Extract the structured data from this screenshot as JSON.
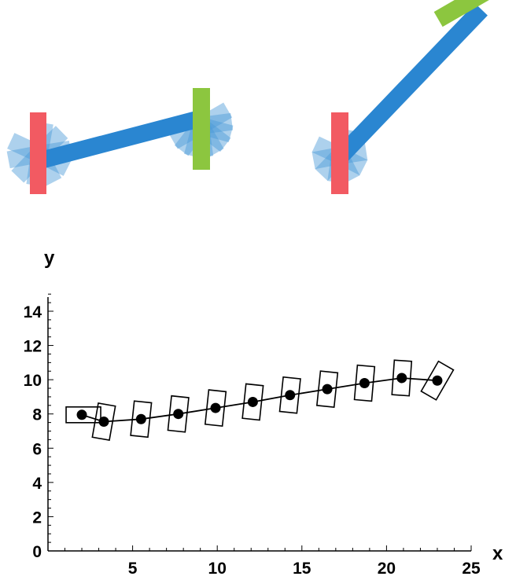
{
  "colors": {
    "beam": "#2a86d1",
    "fan": "#4a9ad6",
    "left_plate": "#f25a62",
    "right_plate": "#8cc63f",
    "ink": "#000000"
  },
  "chart_data": [
    {
      "type": "illustration",
      "panel": "top-left"
    },
    {
      "type": "illustration",
      "panel": "top-right"
    },
    {
      "type": "scatter",
      "xlabel": "x",
      "ylabel": "y",
      "xlim": [
        0,
        25
      ],
      "ylim": [
        0,
        15
      ],
      "xticks": [
        5,
        10,
        15,
        20,
        25
      ],
      "yticks": [
        0,
        2,
        4,
        6,
        8,
        10,
        12,
        14
      ],
      "grid": false,
      "points": [
        {
          "x": 2.0,
          "y": 7.95,
          "angle": 0
        },
        {
          "x": 3.3,
          "y": 7.55,
          "angle": 10
        },
        {
          "x": 5.5,
          "y": 7.7,
          "angle": 6
        },
        {
          "x": 7.7,
          "y": 8.0,
          "angle": 6
        },
        {
          "x": 9.9,
          "y": 8.35,
          "angle": 6
        },
        {
          "x": 12.1,
          "y": 8.7,
          "angle": 6
        },
        {
          "x": 14.3,
          "y": 9.1,
          "angle": 6
        },
        {
          "x": 16.5,
          "y": 9.45,
          "angle": 6
        },
        {
          "x": 18.7,
          "y": 9.8,
          "angle": 5
        },
        {
          "x": 20.9,
          "y": 10.1,
          "angle": 4
        },
        {
          "x": 23.0,
          "y": 9.95,
          "angle": 30
        }
      ]
    }
  ]
}
